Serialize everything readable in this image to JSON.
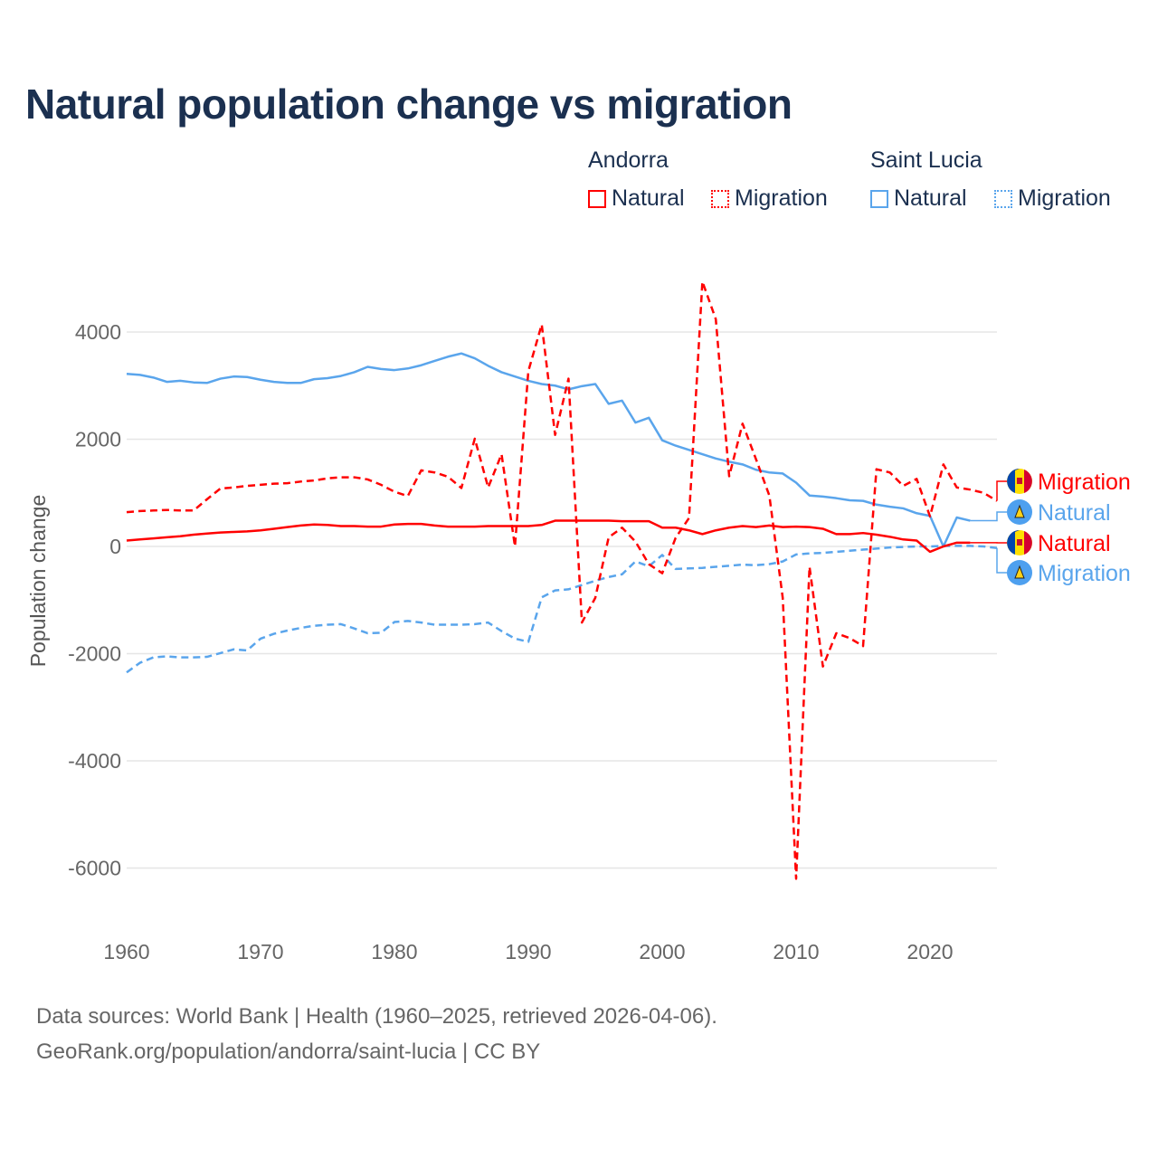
{
  "title": "Natural population change vs migration",
  "legend": {
    "groups": [
      {
        "name": "Andorra",
        "items": [
          "Natural",
          "Migration"
        ],
        "color": "#ff0000"
      },
      {
        "name": "Saint Lucia",
        "items": [
          "Natural",
          "Migration"
        ],
        "color": "#5aa5ec"
      }
    ]
  },
  "footer": {
    "line1": "Data sources: World Bank | Health (1960–2025, retrieved 2026-04-06).",
    "line2": "GeoRank.org/population/andorra/saint-lucia | CC BY"
  },
  "chart_data": {
    "type": "line",
    "title": "Natural population change vs migration",
    "xlabel": "",
    "ylabel": "Population change",
    "xlim": [
      1960,
      2025
    ],
    "ylim": [
      -6500,
      5000
    ],
    "xticks": [
      1960,
      1970,
      1980,
      1990,
      2000,
      2010,
      2020
    ],
    "yticks": [
      -6000,
      -4000,
      -2000,
      0,
      2000,
      4000
    ],
    "grid": true,
    "legend_position": "top-right",
    "series": [
      {
        "name": "Saint Lucia Natural",
        "label": "Natural",
        "country": "Saint Lucia",
        "color": "#5aa5ec",
        "dash": false,
        "start": 1960,
        "values": [
          3220,
          3200,
          3150,
          3070,
          3090,
          3060,
          3050,
          3130,
          3170,
          3160,
          3110,
          3070,
          3050,
          3050,
          3120,
          3140,
          3180,
          3250,
          3350,
          3310,
          3290,
          3320,
          3380,
          3460,
          3540,
          3600,
          3510,
          3370,
          3250,
          3170,
          3090,
          3030,
          3000,
          2930,
          2990,
          3030,
          2660,
          2720,
          2310,
          2400,
          1980,
          1880,
          1800,
          1720,
          1640,
          1580,
          1530,
          1430,
          1380,
          1360,
          1190,
          950,
          930,
          900,
          860,
          850,
          780,
          740,
          710,
          620,
          570,
          0,
          540,
          480
        ]
      },
      {
        "name": "Saint Lucia Migration",
        "label": "Migration",
        "country": "Saint Lucia",
        "color": "#5aa5ec",
        "dash": true,
        "start": 1960,
        "values": [
          -2350,
          -2170,
          -2070,
          -2050,
          -2070,
          -2070,
          -2060,
          -1990,
          -1920,
          -1940,
          -1720,
          -1630,
          -1570,
          -1520,
          -1480,
          -1460,
          -1450,
          -1530,
          -1620,
          -1610,
          -1410,
          -1390,
          -1420,
          -1460,
          -1460,
          -1460,
          -1450,
          -1420,
          -1580,
          -1720,
          -1780,
          -950,
          -820,
          -800,
          -720,
          -640,
          -570,
          -520,
          -280,
          -370,
          -160,
          -420,
          -410,
          -400,
          -380,
          -360,
          -340,
          -350,
          -330,
          -280,
          -150,
          -130,
          -120,
          -100,
          -80,
          -60,
          -40,
          -20,
          -10,
          0,
          0,
          10,
          10,
          10,
          0,
          -30
        ]
      },
      {
        "name": "Andorra Natural",
        "label": "Natural",
        "country": "Andorra",
        "color": "#ff0000",
        "dash": false,
        "start": 1960,
        "values": [
          110,
          130,
          150,
          170,
          190,
          220,
          240,
          260,
          270,
          280,
          300,
          330,
          360,
          390,
          410,
          400,
          380,
          380,
          370,
          370,
          410,
          420,
          420,
          390,
          370,
          370,
          370,
          380,
          380,
          380,
          380,
          400,
          480,
          480,
          480,
          480,
          480,
          470,
          470,
          470,
          350,
          350,
          300,
          230,
          300,
          350,
          380,
          360,
          390,
          360,
          370,
          360,
          330,
          230,
          230,
          250,
          220,
          180,
          130,
          110,
          -100,
          0,
          70,
          70
        ]
      },
      {
        "name": "Andorra Migration",
        "label": "Migration",
        "country": "Andorra",
        "color": "#ff0000",
        "dash": true,
        "start": 1960,
        "values": [
          640,
          660,
          670,
          680,
          670,
          670,
          880,
          1080,
          1100,
          1130,
          1150,
          1170,
          1180,
          1210,
          1230,
          1270,
          1290,
          1290,
          1250,
          1150,
          1020,
          940,
          1420,
          1380,
          1300,
          1090,
          2010,
          1100,
          1720,
          0,
          3270,
          4140,
          2080,
          3130,
          -1420,
          -960,
          170,
          350,
          90,
          -330,
          -500,
          160,
          530,
          4940,
          4240,
          1310,
          2290,
          1630,
          950,
          -960,
          -6200,
          -380,
          -2240,
          -1620,
          -1710,
          -1860,
          1440,
          1380,
          1130,
          1260,
          560,
          1530,
          1100,
          1060,
          1000,
          850
        ]
      }
    ],
    "end_labels": [
      {
        "text": "Migration",
        "country": "Andorra",
        "color": "#ff0000"
      },
      {
        "text": "Natural",
        "country": "Saint Lucia",
        "color": "#5aa5ec"
      },
      {
        "text": "Natural",
        "country": "Andorra",
        "color": "#ff0000"
      },
      {
        "text": "Migration",
        "country": "Saint Lucia",
        "color": "#5aa5ec"
      }
    ]
  }
}
